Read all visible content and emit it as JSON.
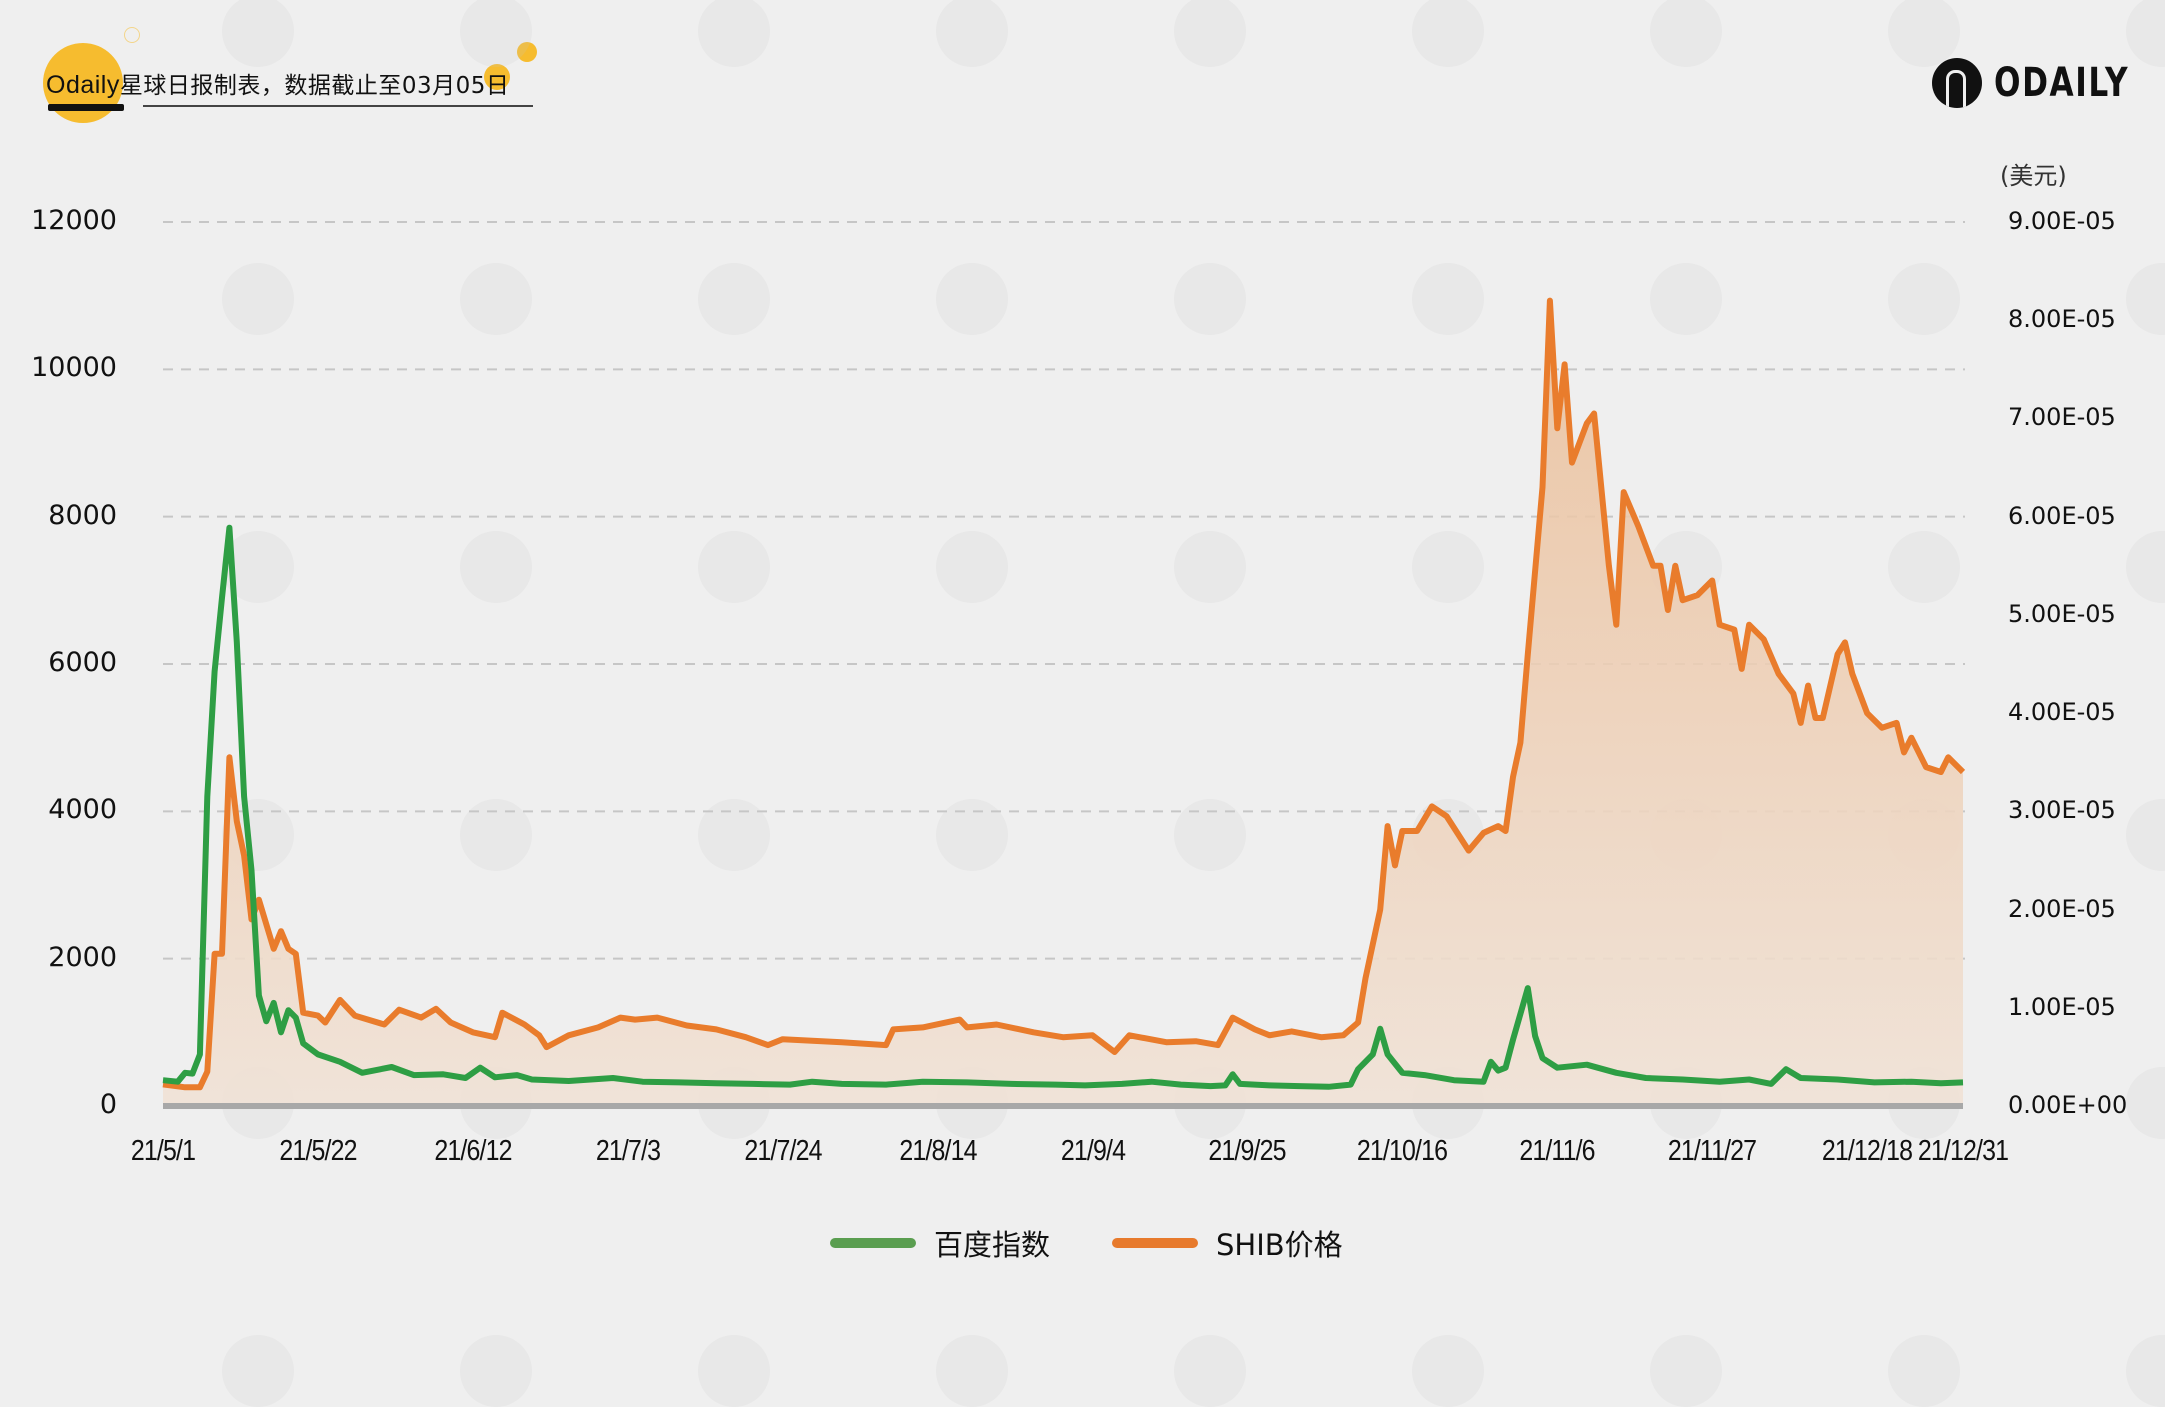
{
  "header": {
    "brand": "Odaily",
    "title": "星球日报制表，数据截止至03月05日"
  },
  "logo": {
    "text": "ODAILY"
  },
  "right_axis_unit": "(美元)",
  "colors": {
    "background": "#efefef",
    "accent_yellow": "#f6bc2f",
    "baidu_line": "#2e9e44",
    "shib_line": "#e97c2c",
    "shib_fill_top": "#ecc3a0",
    "shib_fill_bottom": "#f0e4da",
    "grid": "#c4c4c4",
    "baseline": "#a8a8a8"
  },
  "legend": [
    {
      "label": "百度指数",
      "color": "#5a9e50"
    },
    {
      "label": "SHIB价格",
      "color": "#e77a2c"
    }
  ],
  "chart_data": {
    "type": "line",
    "title": "Odaily星球日报制表，数据截止至03月05日",
    "xlabel": "",
    "ylabel_left": "百度指数",
    "ylabel_right": "(美元)",
    "x_range": [
      "2021-05-01",
      "2021-12-31"
    ],
    "x_tick_labels": [
      "21/5/1",
      "21/5/22",
      "21/6/12",
      "21/7/3",
      "21/7/24",
      "21/8/14",
      "21/9/4",
      "21/9/25",
      "21/10/16",
      "21/11/6",
      "21/11/27",
      "21/12/18",
      "21/12/31"
    ],
    "y_left_ticks": [
      "0",
      "2000",
      "4000",
      "6000",
      "8000",
      "10000",
      "12000"
    ],
    "y_left_range": [
      0,
      12000
    ],
    "y_right_ticks": [
      "0.00E+00",
      "1.00E-05",
      "2.00E-05",
      "3.00E-05",
      "4.00E-05",
      "5.00E-05",
      "6.00E-05",
      "7.00E-05",
      "8.00E-05",
      "9.00E-05"
    ],
    "y_right_range": [
      0,
      9e-05
    ],
    "grid": "horizontal dashed",
    "legend_position": "bottom",
    "series": [
      {
        "name": "百度指数",
        "axis": "left",
        "style": "line",
        "points": [
          [
            "2021-05-01",
            350
          ],
          [
            "2021-05-03",
            330
          ],
          [
            "2021-05-04",
            450
          ],
          [
            "2021-05-05",
            440
          ],
          [
            "2021-05-06",
            700
          ],
          [
            "2021-05-07",
            4200
          ],
          [
            "2021-05-08",
            5900
          ],
          [
            "2021-05-09",
            6900
          ],
          [
            "2021-05-10",
            7850
          ],
          [
            "2021-05-11",
            6300
          ],
          [
            "2021-05-12",
            4200
          ],
          [
            "2021-05-13",
            3200
          ],
          [
            "2021-05-14",
            1500
          ],
          [
            "2021-05-15",
            1150
          ],
          [
            "2021-05-16",
            1400
          ],
          [
            "2021-05-17",
            1000
          ],
          [
            "2021-05-18",
            1300
          ],
          [
            "2021-05-19",
            1200
          ],
          [
            "2021-05-20",
            850
          ],
          [
            "2021-05-22",
            700
          ],
          [
            "2021-05-25",
            600
          ],
          [
            "2021-05-28",
            450
          ],
          [
            "2021-06-01",
            530
          ],
          [
            "2021-06-04",
            420
          ],
          [
            "2021-06-08",
            430
          ],
          [
            "2021-06-11",
            380
          ],
          [
            "2021-06-13",
            520
          ],
          [
            "2021-06-15",
            390
          ],
          [
            "2021-06-18",
            420
          ],
          [
            "2021-06-20",
            360
          ],
          [
            "2021-06-25",
            340
          ],
          [
            "2021-07-01",
            380
          ],
          [
            "2021-07-05",
            330
          ],
          [
            "2021-07-10",
            320
          ],
          [
            "2021-07-15",
            310
          ],
          [
            "2021-07-20",
            300
          ],
          [
            "2021-07-25",
            290
          ],
          [
            "2021-07-28",
            330
          ],
          [
            "2021-08-01",
            300
          ],
          [
            "2021-08-07",
            290
          ],
          [
            "2021-08-12",
            330
          ],
          [
            "2021-08-18",
            320
          ],
          [
            "2021-08-24",
            300
          ],
          [
            "2021-08-30",
            290
          ],
          [
            "2021-09-03",
            280
          ],
          [
            "2021-09-08",
            300
          ],
          [
            "2021-09-12",
            330
          ],
          [
            "2021-09-16",
            290
          ],
          [
            "2021-09-20",
            270
          ],
          [
            "2021-09-22",
            280
          ],
          [
            "2021-09-23",
            430
          ],
          [
            "2021-09-24",
            300
          ],
          [
            "2021-09-28",
            280
          ],
          [
            "2021-10-02",
            270
          ],
          [
            "2021-10-06",
            260
          ],
          [
            "2021-10-09",
            290
          ],
          [
            "2021-10-10",
            500
          ],
          [
            "2021-10-12",
            700
          ],
          [
            "2021-10-13",
            1050
          ],
          [
            "2021-10-14",
            700
          ],
          [
            "2021-10-16",
            450
          ],
          [
            "2021-10-19",
            420
          ],
          [
            "2021-10-23",
            350
          ],
          [
            "2021-10-27",
            330
          ],
          [
            "2021-10-28",
            600
          ],
          [
            "2021-10-29",
            480
          ],
          [
            "2021-10-30",
            520
          ],
          [
            "2021-10-31",
            900
          ],
          [
            "2021-11-01",
            1250
          ],
          [
            "2021-11-02",
            1600
          ],
          [
            "2021-11-03",
            950
          ],
          [
            "2021-11-04",
            650
          ],
          [
            "2021-11-06",
            520
          ],
          [
            "2021-11-10",
            560
          ],
          [
            "2021-11-14",
            450
          ],
          [
            "2021-11-18",
            380
          ],
          [
            "2021-11-23",
            360
          ],
          [
            "2021-11-28",
            330
          ],
          [
            "2021-12-02",
            360
          ],
          [
            "2021-12-05",
            300
          ],
          [
            "2021-12-07",
            500
          ],
          [
            "2021-12-09",
            380
          ],
          [
            "2021-12-14",
            360
          ],
          [
            "2021-12-19",
            320
          ],
          [
            "2021-12-24",
            330
          ],
          [
            "2021-12-28",
            310
          ],
          [
            "2021-12-31",
            320
          ]
        ]
      },
      {
        "name": "SHIB价格",
        "axis": "right",
        "style": "line+area",
        "unit": "E-05 USD",
        "points": [
          [
            "2021-05-01",
            0.22
          ],
          [
            "2021-05-04",
            0.19
          ],
          [
            "2021-05-06",
            0.19
          ],
          [
            "2021-05-07",
            0.35
          ],
          [
            "2021-05-08",
            1.55
          ],
          [
            "2021-05-09",
            1.55
          ],
          [
            "2021-05-10",
            3.55
          ],
          [
            "2021-05-11",
            2.9
          ],
          [
            "2021-05-12",
            2.55
          ],
          [
            "2021-05-13",
            1.9
          ],
          [
            "2021-05-14",
            2.1
          ],
          [
            "2021-05-16",
            1.6
          ],
          [
            "2021-05-17",
            1.78
          ],
          [
            "2021-05-18",
            1.6
          ],
          [
            "2021-05-19",
            1.55
          ],
          [
            "2021-05-20",
            0.95
          ],
          [
            "2021-05-22",
            0.92
          ],
          [
            "2021-05-23",
            0.85
          ],
          [
            "2021-05-25",
            1.08
          ],
          [
            "2021-05-27",
            0.92
          ],
          [
            "2021-05-31",
            0.83
          ],
          [
            "2021-06-02",
            0.98
          ],
          [
            "2021-06-05",
            0.9
          ],
          [
            "2021-06-07",
            0.99
          ],
          [
            "2021-06-09",
            0.85
          ],
          [
            "2021-06-12",
            0.75
          ],
          [
            "2021-06-15",
            0.7
          ],
          [
            "2021-06-16",
            0.95
          ],
          [
            "2021-06-19",
            0.83
          ],
          [
            "2021-06-21",
            0.72
          ],
          [
            "2021-06-22",
            0.6
          ],
          [
            "2021-06-25",
            0.72
          ],
          [
            "2021-06-29",
            0.8
          ],
          [
            "2021-07-02",
            0.9
          ],
          [
            "2021-07-04",
            0.88
          ],
          [
            "2021-07-07",
            0.9
          ],
          [
            "2021-07-11",
            0.82
          ],
          [
            "2021-07-15",
            0.78
          ],
          [
            "2021-07-19",
            0.7
          ],
          [
            "2021-07-22",
            0.62
          ],
          [
            "2021-07-24",
            0.68
          ],
          [
            "2021-08-01",
            0.65
          ],
          [
            "2021-08-07",
            0.62
          ],
          [
            "2021-08-08",
            0.78
          ],
          [
            "2021-08-12",
            0.8
          ],
          [
            "2021-08-17",
            0.88
          ],
          [
            "2021-08-18",
            0.8
          ],
          [
            "2021-08-22",
            0.83
          ],
          [
            "2021-08-27",
            0.75
          ],
          [
            "2021-08-31",
            0.7
          ],
          [
            "2021-09-04",
            0.72
          ],
          [
            "2021-09-07",
            0.55
          ],
          [
            "2021-09-09",
            0.72
          ],
          [
            "2021-09-14",
            0.65
          ],
          [
            "2021-09-18",
            0.66
          ],
          [
            "2021-09-21",
            0.62
          ],
          [
            "2021-09-23",
            0.9
          ],
          [
            "2021-09-26",
            0.78
          ],
          [
            "2021-09-28",
            0.72
          ],
          [
            "2021-10-01",
            0.76
          ],
          [
            "2021-10-05",
            0.7
          ],
          [
            "2021-10-08",
            0.72
          ],
          [
            "2021-10-10",
            0.85
          ],
          [
            "2021-10-11",
            1.3
          ],
          [
            "2021-10-13",
            2.0
          ],
          [
            "2021-10-14",
            2.85
          ],
          [
            "2021-10-15",
            2.45
          ],
          [
            "2021-10-16",
            2.8
          ],
          [
            "2021-10-18",
            2.8
          ],
          [
            "2021-10-20",
            3.05
          ],
          [
            "2021-10-22",
            2.95
          ],
          [
            "2021-10-25",
            2.6
          ],
          [
            "2021-10-27",
            2.78
          ],
          [
            "2021-10-29",
            2.85
          ],
          [
            "2021-10-30",
            2.8
          ],
          [
            "2021-10-31",
            3.35
          ],
          [
            "2021-11-01",
            3.7
          ],
          [
            "2021-11-02",
            4.6
          ],
          [
            "2021-11-04",
            6.3
          ],
          [
            "2021-11-05",
            8.2
          ],
          [
            "2021-11-06",
            6.9
          ],
          [
            "2021-11-07",
            7.55
          ],
          [
            "2021-11-08",
            6.55
          ],
          [
            "2021-11-10",
            6.95
          ],
          [
            "2021-11-11",
            7.05
          ],
          [
            "2021-11-13",
            5.5
          ],
          [
            "2021-11-14",
            4.9
          ],
          [
            "2021-11-15",
            6.25
          ],
          [
            "2021-11-17",
            5.9
          ],
          [
            "2021-11-19",
            5.5
          ],
          [
            "2021-11-20",
            5.5
          ],
          [
            "2021-11-21",
            5.05
          ],
          [
            "2021-11-22",
            5.5
          ],
          [
            "2021-11-23",
            5.15
          ],
          [
            "2021-11-25",
            5.2
          ],
          [
            "2021-11-27",
            5.35
          ],
          [
            "2021-11-28",
            4.9
          ],
          [
            "2021-11-30",
            4.85
          ],
          [
            "2021-12-01",
            4.45
          ],
          [
            "2021-12-02",
            4.9
          ],
          [
            "2021-12-04",
            4.75
          ],
          [
            "2021-12-06",
            4.4
          ],
          [
            "2021-12-08",
            4.2
          ],
          [
            "2021-12-09",
            3.9
          ],
          [
            "2021-12-10",
            4.28
          ],
          [
            "2021-12-11",
            3.95
          ],
          [
            "2021-12-12",
            3.95
          ],
          [
            "2021-12-14",
            4.6
          ],
          [
            "2021-12-15",
            4.72
          ],
          [
            "2021-12-16",
            4.4
          ],
          [
            "2021-12-18",
            4.0
          ],
          [
            "2021-12-20",
            3.85
          ],
          [
            "2021-12-22",
            3.9
          ],
          [
            "2021-12-23",
            3.6
          ],
          [
            "2021-12-24",
            3.75
          ],
          [
            "2021-12-26",
            3.45
          ],
          [
            "2021-12-28",
            3.4
          ],
          [
            "2021-12-29",
            3.55
          ],
          [
            "2021-12-31",
            3.4
          ]
        ]
      }
    ]
  }
}
